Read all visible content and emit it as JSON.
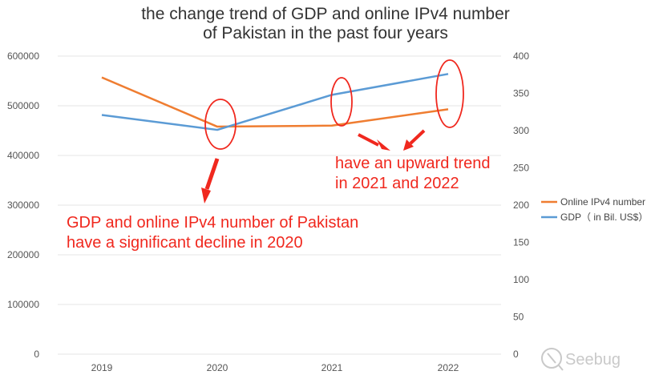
{
  "chart_data": {
    "type": "line",
    "title_lines": [
      "the change trend of GDP and online IPv4 number",
      "of Pakistan in the past four years"
    ],
    "categories": [
      "2019",
      "2020",
      "2021",
      "2022"
    ],
    "y_left": {
      "ticks": [
        "0",
        "100000",
        "200000",
        "300000",
        "400000",
        "500000",
        "600000"
      ],
      "range": [
        0,
        600000
      ]
    },
    "y_right": {
      "ticks": [
        "0",
        "50",
        "100",
        "150",
        "200",
        "250",
        "300",
        "350",
        "400"
      ],
      "range": [
        0,
        400
      ]
    },
    "grid": true,
    "legend_position": "right",
    "series": [
      {
        "name": "Online IPv4 number",
        "axis": "left",
        "color": "#ef7d31",
        "values": [
          557000,
          458000,
          460000,
          493000
        ]
      },
      {
        "name": "GDP（ in Bil. US$）",
        "axis": "right",
        "color": "#5b9bd5",
        "values": [
          321,
          301,
          348,
          376
        ]
      }
    ],
    "annotations": [
      {
        "lines": [
          "GDP and online IPv4 number of Pakistan",
          "have a significant decline in 2020"
        ],
        "color": "#f0281e"
      },
      {
        "lines": [
          "have an upward trend",
          "in 2021 and 2022"
        ],
        "color": "#f0281e"
      }
    ]
  },
  "watermark": {
    "text": "Seebug",
    "icon": "seebug-logo-icon"
  }
}
